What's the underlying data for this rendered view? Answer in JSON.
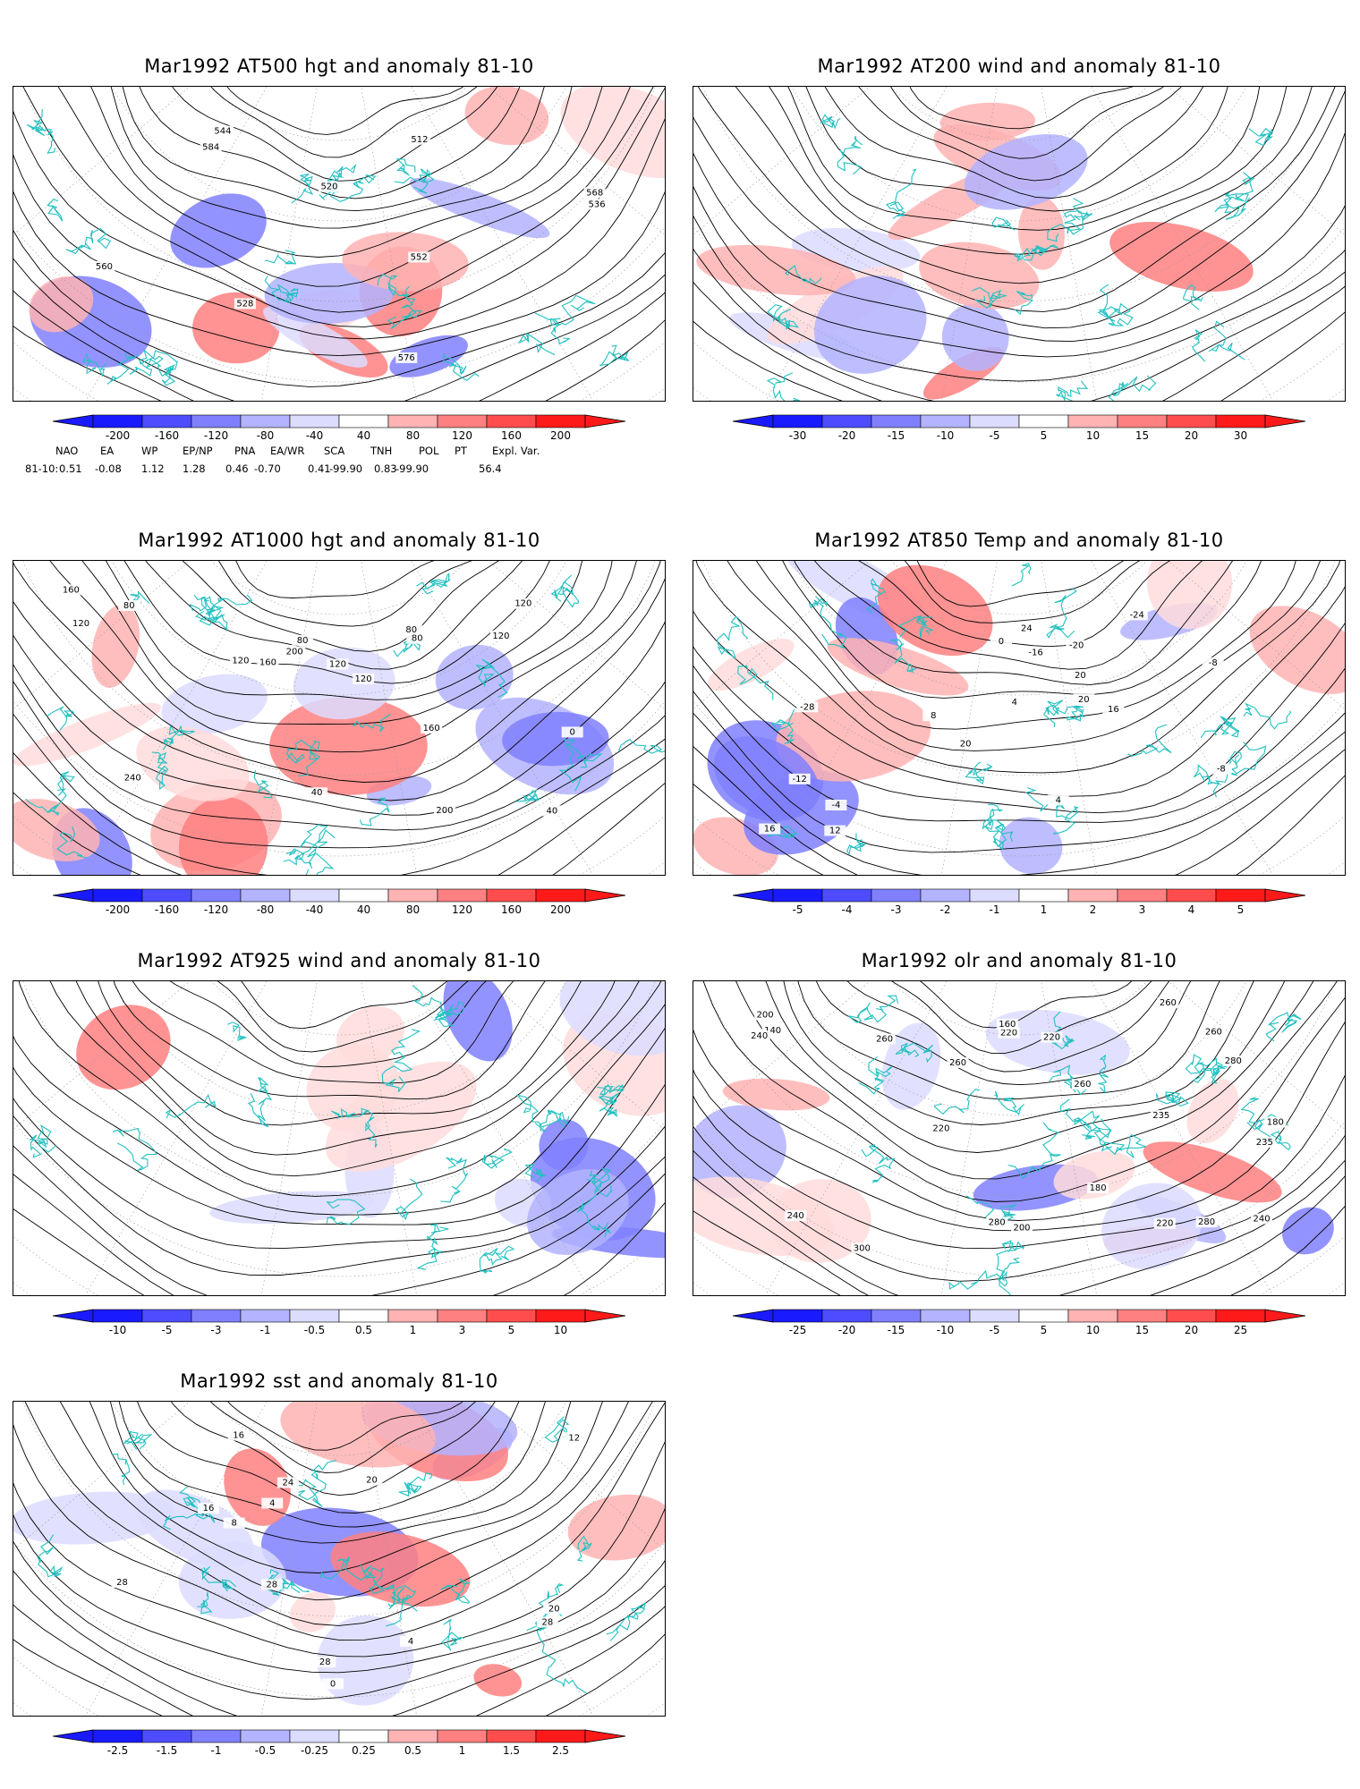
{
  "panels": [
    {
      "title": "Mar1992 AT500 hgt and anomaly 81-10",
      "colorbar": [
        "-200",
        "-160",
        "-120",
        "-80",
        "-40",
        "40",
        "80",
        "120",
        "160",
        "200"
      ],
      "contour_labels": [
        "512",
        "520",
        "528",
        "536",
        "544",
        "552",
        "560",
        "568",
        "576",
        "584"
      ]
    },
    {
      "title": "Mar1992 AT200 wind and anomaly 81-10",
      "colorbar": [
        "-30",
        "-20",
        "-15",
        "-10",
        "-5",
        "5",
        "10",
        "15",
        "20",
        "30"
      ],
      "contour_labels": []
    },
    {
      "title": "Mar1992 AT1000 hgt and anomaly 81-10",
      "colorbar": [
        "-200",
        "-160",
        "-120",
        "-80",
        "-40",
        "40",
        "80",
        "120",
        "160",
        "200"
      ],
      "contour_labels": [
        "120",
        "80",
        "40",
        "0",
        "40",
        "120",
        "200",
        "160",
        "200",
        "240",
        "80",
        "120",
        "160",
        "120",
        "160",
        "120",
        "80",
        "80",
        "120"
      ]
    },
    {
      "title": "Mar1992 AT850 Temp and anomaly 81-10",
      "colorbar": [
        "-5",
        "-4",
        "-3",
        "-2",
        "-1",
        "1",
        "2",
        "3",
        "4",
        "5"
      ],
      "contour_labels": [
        "-28",
        "-24",
        "-20",
        "-16",
        "-12",
        "-8",
        "-4",
        "0",
        "4",
        "8",
        "12",
        "16",
        "20",
        "24",
        "20",
        "16",
        "-8",
        "20",
        "4"
      ]
    },
    {
      "title": "Mar1992 AT925 wind and anomaly 81-10",
      "colorbar": [
        "-10",
        "-5",
        "-3",
        "-1",
        "-0.5",
        "0.5",
        "1",
        "3",
        "5",
        "10"
      ],
      "contour_labels": []
    },
    {
      "title": "Mar1992 olr and anomaly 81-10",
      "colorbar": [
        "-25",
        "-20",
        "-15",
        "-10",
        "-5",
        "5",
        "10",
        "15",
        "20",
        "25"
      ],
      "contour_labels": [
        "235",
        "280",
        "180",
        "140",
        "200",
        "220",
        "240",
        "260",
        "280",
        "300",
        "200",
        "220",
        "240",
        "260",
        "280",
        "220",
        "260",
        "260",
        "260",
        "240",
        "220",
        "235",
        "180",
        "160"
      ]
    },
    {
      "title": "Mar1992 sst and anomaly 81-10",
      "colorbar": [
        "-2.5",
        "-1.5",
        "-1",
        "-0.5",
        "-0.25",
        "0.25",
        "0.5",
        "1",
        "1.5",
        "2.5"
      ],
      "contour_labels": [
        "28",
        "28",
        "20",
        "4",
        "8",
        "12",
        "16",
        "20",
        "24",
        "28",
        "28",
        "16",
        "0",
        "4"
      ]
    }
  ],
  "teleconnection": {
    "header": [
      "NAO",
      "EA",
      "WP",
      "EP/NP",
      "PNA",
      "EA/WR",
      "SCA",
      "TNH",
      "POL",
      "PT",
      "Expl. Var."
    ],
    "row_label": "81-10:",
    "values": [
      "0.51",
      "-0.08",
      "1.12",
      "1.28",
      "0.46",
      "-0.70",
      "0.41",
      "-99.90",
      "0.83",
      "-99.90",
      "56.4"
    ]
  },
  "colors": {
    "blue_scale": [
      "#1a1aff",
      "#4d4dff",
      "#8080ff",
      "#b3b3ff",
      "#dcdcff"
    ],
    "red_scale": [
      "#ffdcdc",
      "#ffb3b3",
      "#ff8080",
      "#ff4d4d",
      "#ff1a1a"
    ],
    "coast": "#22c0c0",
    "contour": "#000000"
  }
}
